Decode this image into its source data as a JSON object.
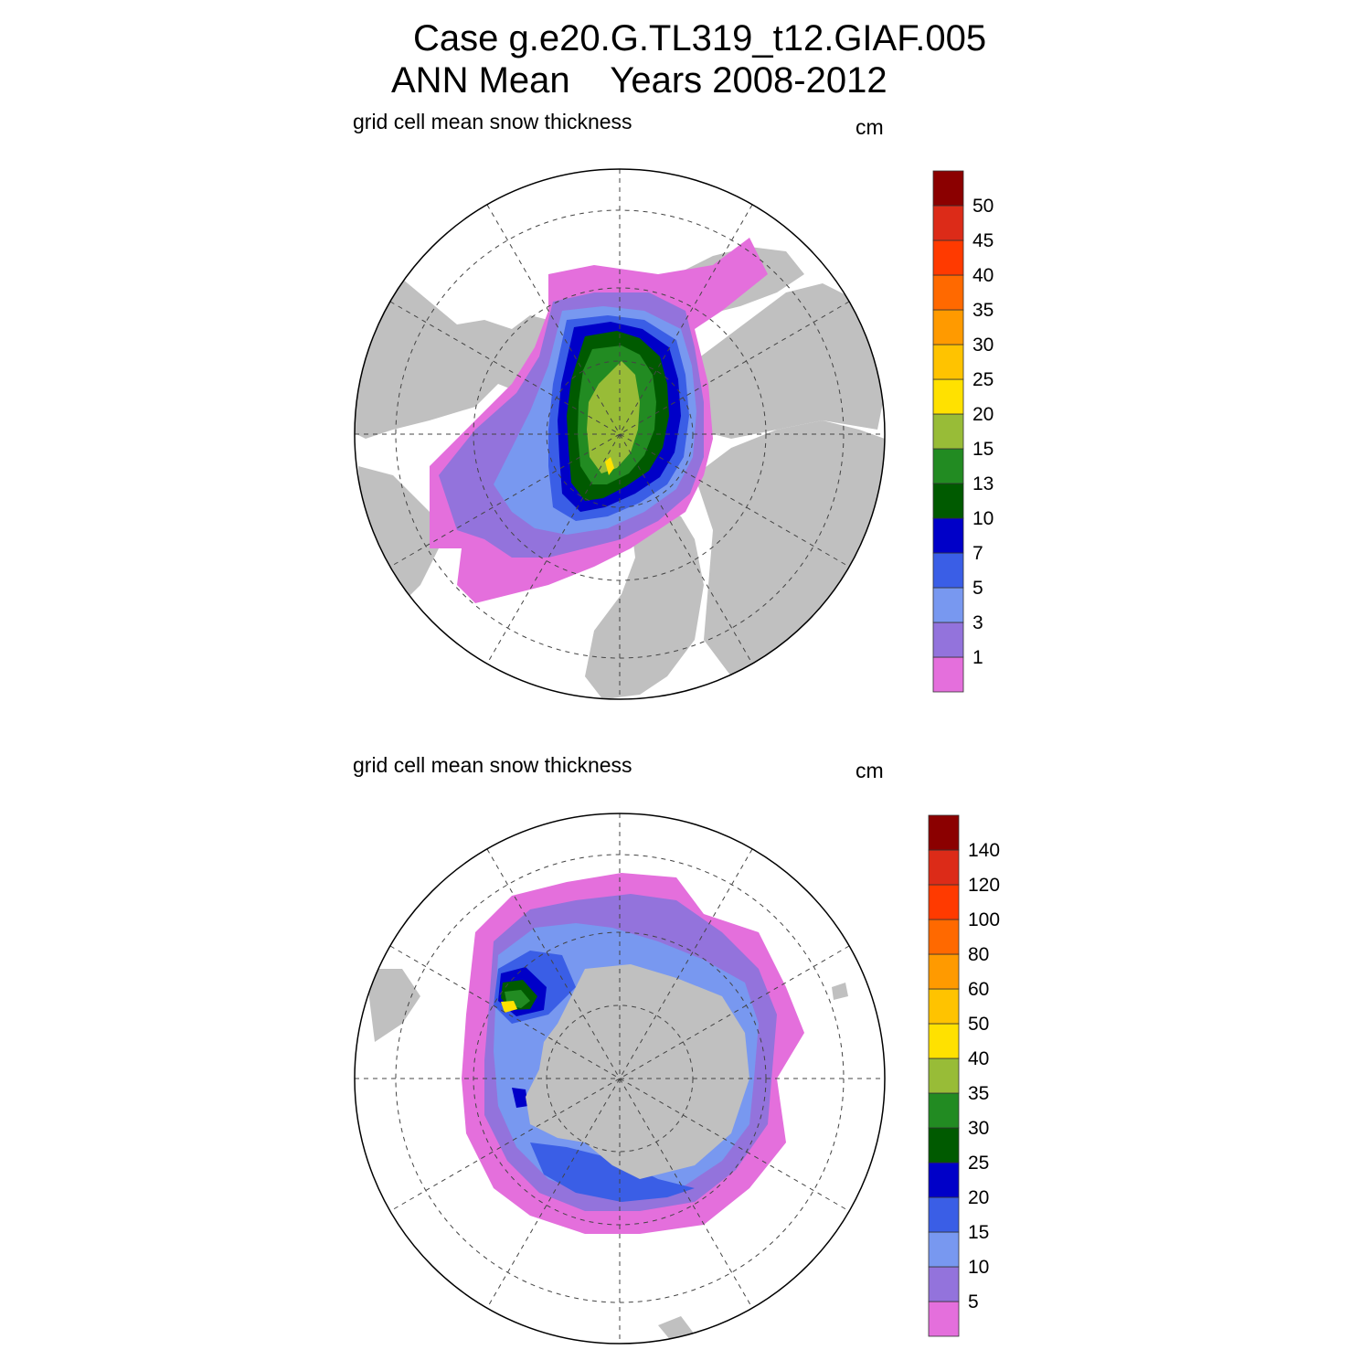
{
  "title": {
    "line1": "Case g.e20.G.TL319_t12.GIAF.005",
    "line2": "ANN Mean    Years 2008-2012"
  },
  "panels": [
    {
      "hemisphere": "north",
      "variable_label": "grid cell mean snow thickness",
      "units": "cm",
      "colorbar": {
        "colors": [
          "#e46fdc",
          "#9373dc",
          "#7898f0",
          "#3a5ee6",
          "#0000c8",
          "#005a00",
          "#228b22",
          "#98bc37",
          "#ffe100",
          "#ffc300",
          "#ff9a00",
          "#ff6900",
          "#ff3a00",
          "#dc2b18",
          "#8b0000"
        ],
        "levels": [
          "1",
          "3",
          "5",
          "7",
          "10",
          "13",
          "15",
          "20",
          "25",
          "30",
          "35",
          "40",
          "45",
          "50"
        ]
      }
    },
    {
      "hemisphere": "south",
      "variable_label": "grid cell mean snow thickness",
      "units": "cm",
      "colorbar": {
        "colors": [
          "#e46fdc",
          "#9373dc",
          "#7898f0",
          "#3a5ee6",
          "#0000c8",
          "#005a00",
          "#228b22",
          "#98bc37",
          "#ffe100",
          "#ffc300",
          "#ff9a00",
          "#ff6900",
          "#ff3a00",
          "#dc2b18",
          "#8b0000"
        ],
        "levels": [
          "5",
          "10",
          "15",
          "20",
          "25",
          "30",
          "35",
          "40",
          "50",
          "60",
          "80",
          "100",
          "120",
          "140"
        ]
      }
    }
  ],
  "style": {
    "land_color": "#c0c0c0",
    "ocean_color": "#ffffff",
    "grid_color": "#444444"
  }
}
